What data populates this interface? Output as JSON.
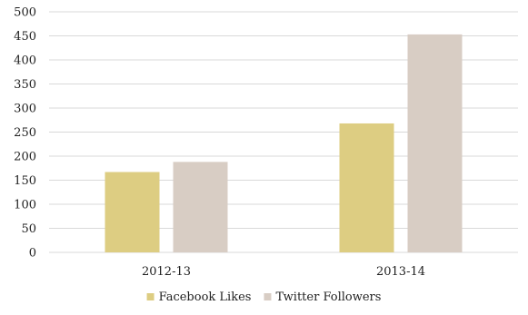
{
  "chart_data": {
    "type": "bar",
    "title": "",
    "xlabel": "",
    "ylabel": "",
    "categories": [
      "2012-13",
      "2013-14"
    ],
    "series": [
      {
        "name": "Facebook Likes",
        "values": [
          167,
          268
        ],
        "color": "#ddcd82"
      },
      {
        "name": "Twitter Followers",
        "values": [
          188,
          453
        ],
        "color": "#d8cdc4"
      }
    ],
    "ylim": [
      0,
      500
    ],
    "yticks": [
      "0",
      "50",
      "100",
      "150",
      "200",
      "250",
      "300",
      "350",
      "400",
      "450",
      "500"
    ],
    "grid": true,
    "legend_position": "bottom",
    "gridline_color": "#d9d9d9"
  }
}
